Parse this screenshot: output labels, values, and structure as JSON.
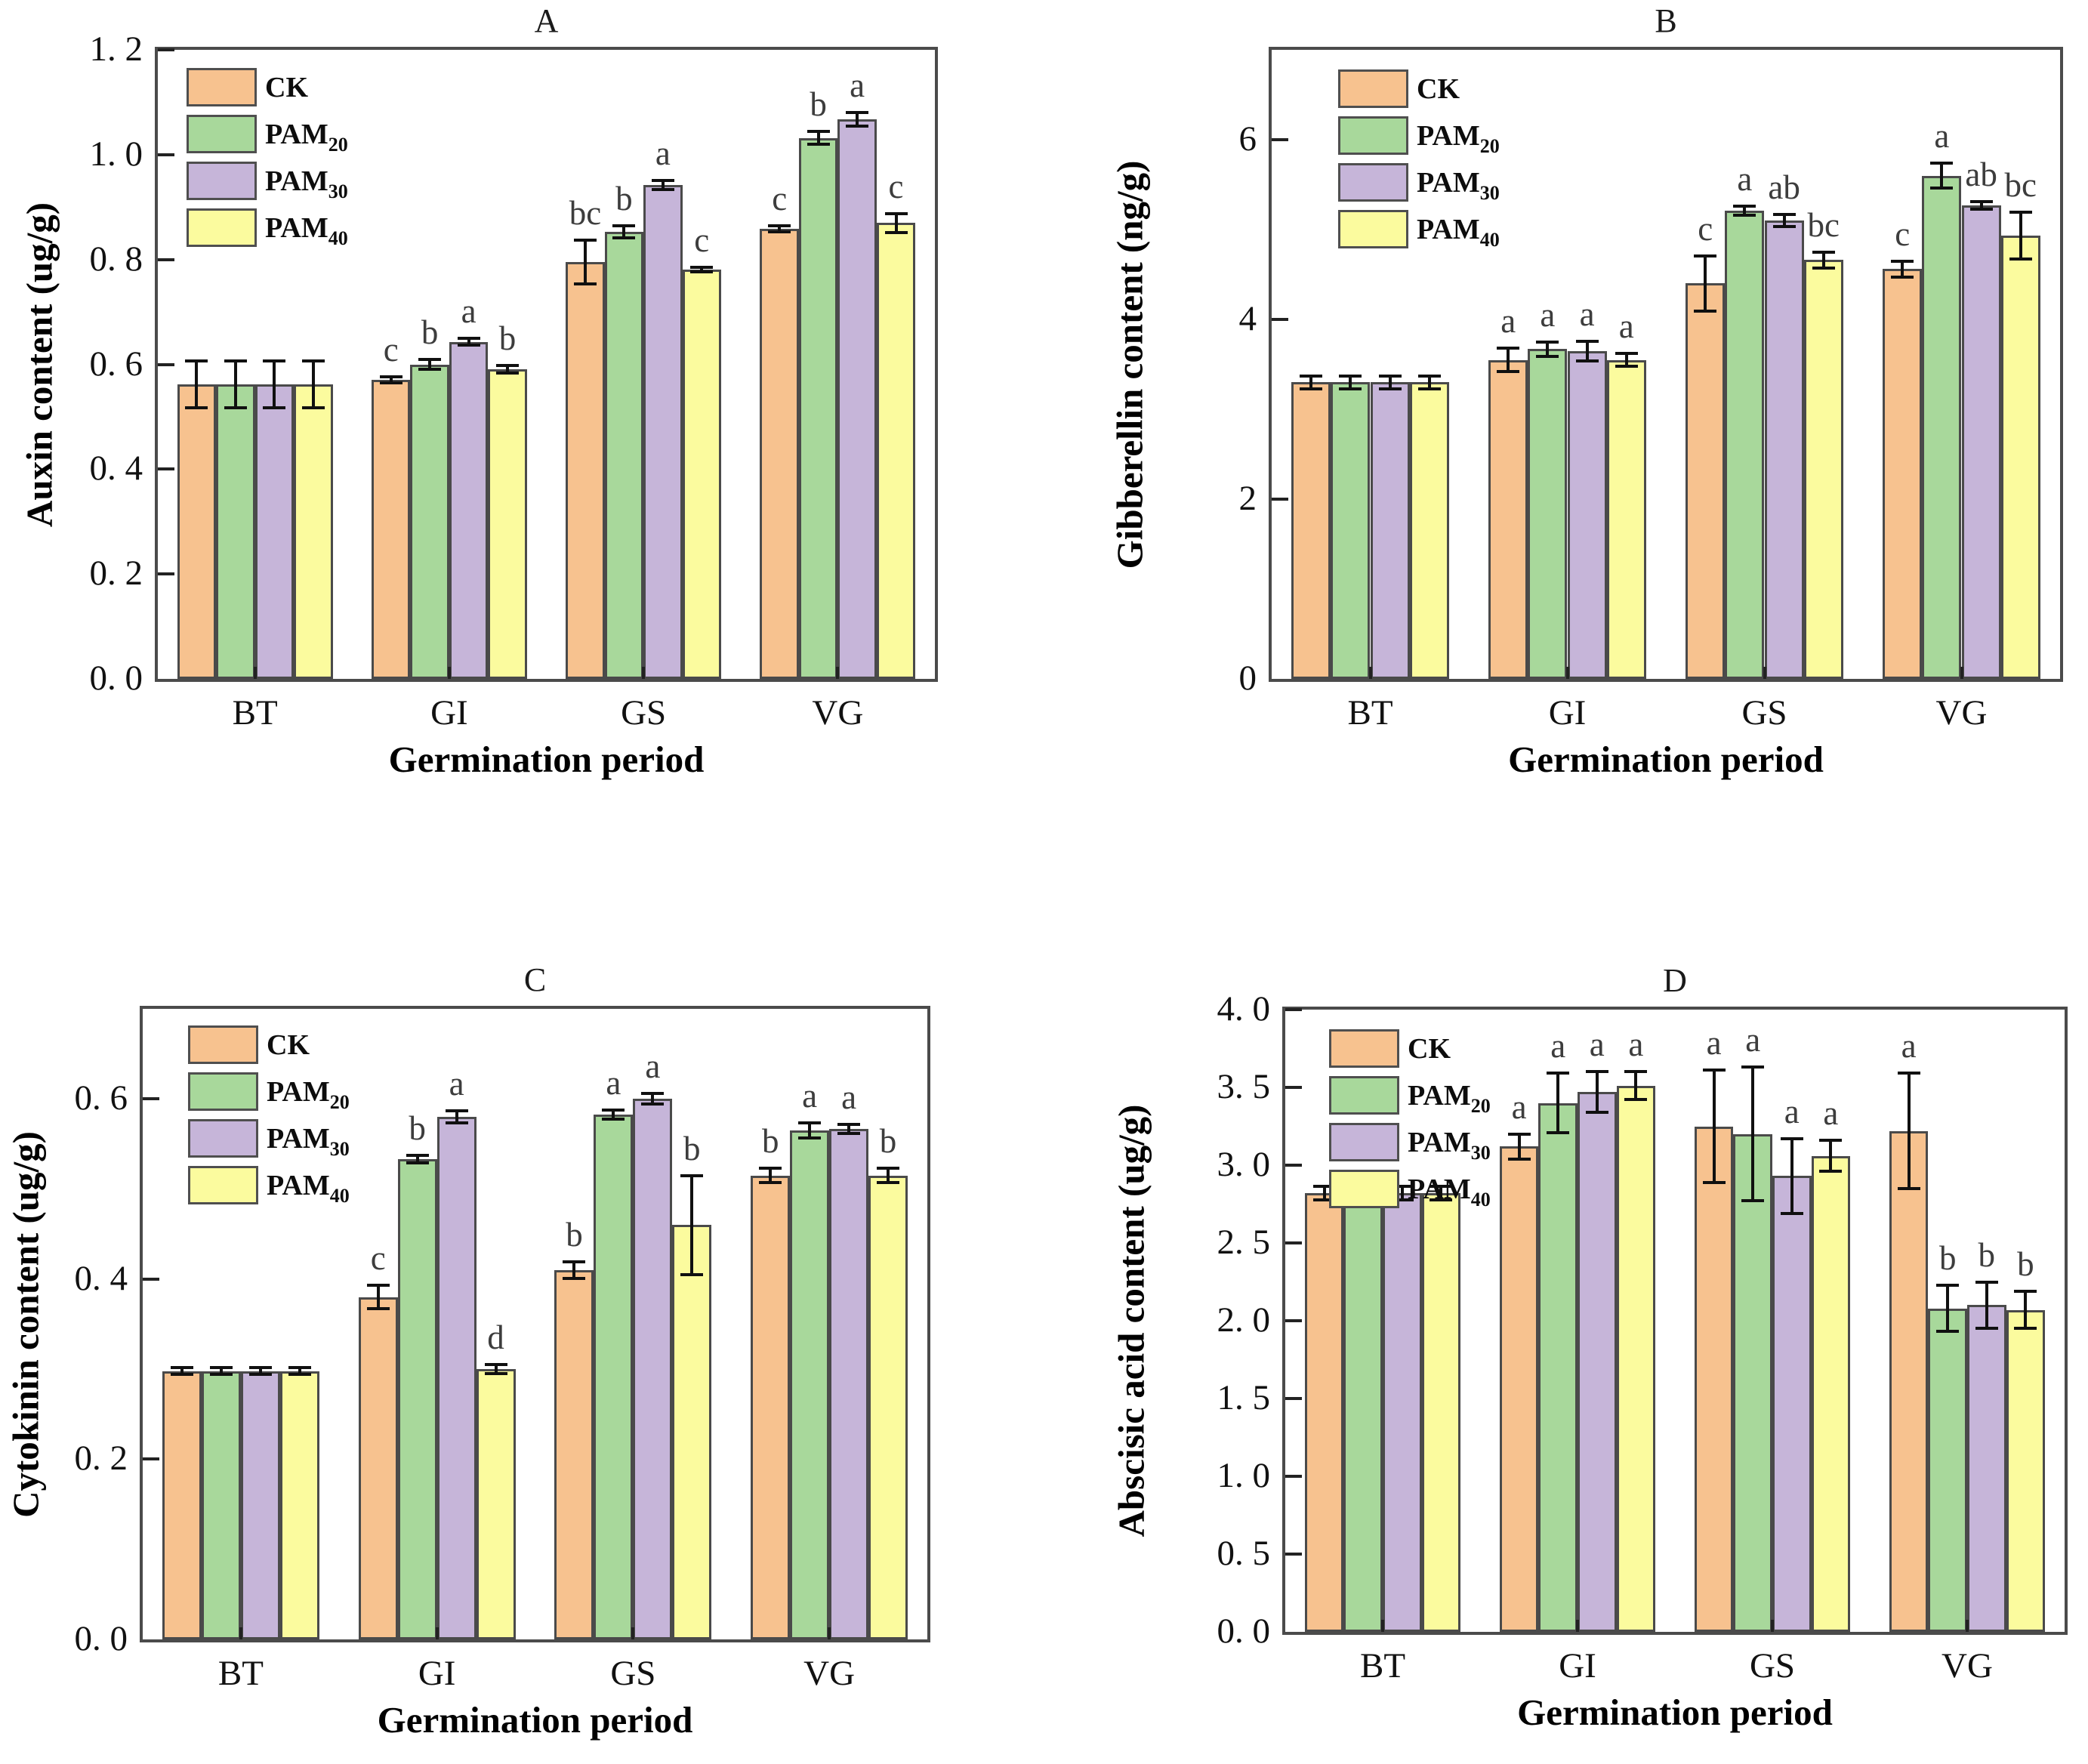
{
  "figure": {
    "background": "#ffffff",
    "series_labels": [
      {
        "label": "CK",
        "sub": ""
      },
      {
        "label": "PAM",
        "sub": "20"
      },
      {
        "label": "PAM",
        "sub": "30"
      },
      {
        "label": "PAM",
        "sub": "40"
      }
    ],
    "series_colors": [
      "#F7C28F",
      "#A8D89B",
      "#C6B5D9",
      "#FBFB9E"
    ],
    "bar_border_color": "#4a4a4a",
    "errorbar_color": "#101010",
    "sig_letter_color": "#3d3d3d",
    "legend_position": "top-left"
  },
  "chart_data": [
    {
      "type": "bar",
      "title": "A",
      "ylabel": "Auxin content (ug/g)",
      "xlabel": "Germination period",
      "categories": [
        "BT",
        "GI",
        "GS",
        "VG"
      ],
      "ylim": [
        0,
        1.2
      ],
      "grid": false,
      "yticks": [
        {
          "v": 0.0,
          "label": "0. 0"
        },
        {
          "v": 0.2,
          "label": "0. 2"
        },
        {
          "v": 0.4,
          "label": "0. 4"
        },
        {
          "v": 0.6,
          "label": "0. 6"
        },
        {
          "v": 0.8,
          "label": "0. 8"
        },
        {
          "v": 1.0,
          "label": "1. 0"
        },
        {
          "v": 1.2,
          "label": "1. 2"
        }
      ],
      "series": [
        {
          "name": "CK",
          "values": [
            0.562,
            0.57,
            0.795,
            0.859
          ],
          "errors": [
            0.045,
            0.006,
            0.042,
            0.006
          ],
          "letters": [
            "",
            "c",
            "bc",
            "c"
          ]
        },
        {
          "name": "PAM20",
          "values": [
            0.562,
            0.6,
            0.853,
            1.032
          ],
          "errors": [
            0.045,
            0.01,
            0.012,
            0.012
          ],
          "letters": [
            "",
            "b",
            "b",
            "b"
          ]
        },
        {
          "name": "PAM30",
          "values": [
            0.562,
            0.643,
            0.942,
            1.068
          ],
          "errors": [
            0.045,
            0.006,
            0.009,
            0.013
          ],
          "letters": [
            "",
            "a",
            "a",
            "a"
          ]
        },
        {
          "name": "PAM40",
          "values": [
            0.562,
            0.591,
            0.781,
            0.87
          ],
          "errors": [
            0.045,
            0.007,
            0.004,
            0.018
          ],
          "letters": [
            "",
            "b",
            "c",
            "c"
          ]
        }
      ]
    },
    {
      "type": "bar",
      "title": "B",
      "ylabel": "Gibberellin content (ng/g)",
      "xlabel": "Germination period",
      "categories": [
        "BT",
        "GI",
        "GS",
        "VG"
      ],
      "ylim": [
        0,
        7
      ],
      "grid": false,
      "yticks": [
        {
          "v": 0,
          "label": "0"
        },
        {
          "v": 2,
          "label": "2"
        },
        {
          "v": 4,
          "label": "4"
        },
        {
          "v": 6,
          "label": "6"
        }
      ],
      "series": [
        {
          "name": "CK",
          "values": [
            3.3,
            3.55,
            4.4,
            4.56
          ],
          "errors": [
            0.07,
            0.13,
            0.31,
            0.09
          ],
          "letters": [
            "",
            "a",
            "c",
            "c"
          ]
        },
        {
          "name": "PAM20",
          "values": [
            3.3,
            3.67,
            5.21,
            5.6
          ],
          "errors": [
            0.07,
            0.08,
            0.05,
            0.14
          ],
          "letters": [
            "",
            "a",
            "a",
            "a"
          ]
        },
        {
          "name": "PAM30",
          "values": [
            3.3,
            3.65,
            5.1,
            5.27
          ],
          "errors": [
            0.07,
            0.11,
            0.07,
            0.04
          ],
          "letters": [
            "",
            "a",
            "ab",
            "ab"
          ]
        },
        {
          "name": "PAM40",
          "values": [
            3.3,
            3.55,
            4.66,
            4.93
          ],
          "errors": [
            0.07,
            0.07,
            0.09,
            0.26
          ],
          "letters": [
            "",
            "a",
            "bc",
            "bc"
          ]
        }
      ]
    },
    {
      "type": "bar",
      "title": "C",
      "ylabel": "Cytokinin content (ug/g)",
      "xlabel": "Germination period",
      "categories": [
        "BT",
        "GI",
        "GS",
        "VG"
      ],
      "ylim": [
        0,
        0.7
      ],
      "grid": false,
      "yticks": [
        {
          "v": 0.0,
          "label": "0. 0"
        },
        {
          "v": 0.2,
          "label": "0. 2"
        },
        {
          "v": 0.4,
          "label": "0. 4"
        },
        {
          "v": 0.6,
          "label": "0. 6"
        }
      ],
      "series": [
        {
          "name": "CK",
          "values": [
            0.298,
            0.38,
            0.41,
            0.515
          ],
          "errors": [
            0.004,
            0.013,
            0.009,
            0.008
          ],
          "letters": [
            "",
            "c",
            "b",
            "b"
          ]
        },
        {
          "name": "PAM20",
          "values": [
            0.298,
            0.533,
            0.583,
            0.565
          ],
          "errors": [
            0.004,
            0.004,
            0.005,
            0.008
          ],
          "letters": [
            "",
            "b",
            "a",
            "a"
          ]
        },
        {
          "name": "PAM30",
          "values": [
            0.298,
            0.58,
            0.6,
            0.567
          ],
          "errors": [
            0.004,
            0.007,
            0.006,
            0.005
          ],
          "letters": [
            "",
            "a",
            "a",
            "a"
          ]
        },
        {
          "name": "PAM40",
          "values": [
            0.298,
            0.3,
            0.46,
            0.515
          ],
          "errors": [
            0.004,
            0.005,
            0.055,
            0.008
          ],
          "letters": [
            "",
            "d",
            "b",
            "b"
          ]
        }
      ]
    },
    {
      "type": "bar",
      "title": "D",
      "ylabel": "Abscisic acid content (ug/g)",
      "xlabel": "Germination period",
      "categories": [
        "BT",
        "GI",
        "GS",
        "VG"
      ],
      "ylim": [
        0,
        4
      ],
      "grid": false,
      "yticks": [
        {
          "v": 0.0,
          "label": "0. 0"
        },
        {
          "v": 0.5,
          "label": "0. 5"
        },
        {
          "v": 1.0,
          "label": "1. 0"
        },
        {
          "v": 1.5,
          "label": "1. 5"
        },
        {
          "v": 2.0,
          "label": "2. 0"
        },
        {
          "v": 2.5,
          "label": "2. 5"
        },
        {
          "v": 3.0,
          "label": "3. 0"
        },
        {
          "v": 3.5,
          "label": "3. 5"
        },
        {
          "v": 4.0,
          "label": "4. 0"
        }
      ],
      "series": [
        {
          "name": "CK",
          "values": [
            2.82,
            3.12,
            3.25,
            3.22
          ],
          "errors": [
            0.045,
            0.08,
            0.36,
            0.37
          ],
          "letters": [
            "",
            "a",
            "a",
            "a"
          ]
        },
        {
          "name": "PAM20",
          "values": [
            2.82,
            3.4,
            3.2,
            2.08
          ],
          "errors": [
            0.045,
            0.19,
            0.43,
            0.15
          ],
          "letters": [
            "",
            "a",
            "a",
            "b"
          ]
        },
        {
          "name": "PAM30",
          "values": [
            2.82,
            3.47,
            2.93,
            2.1
          ],
          "errors": [
            0.045,
            0.13,
            0.24,
            0.15
          ],
          "letters": [
            "",
            "a",
            "a",
            "b"
          ]
        },
        {
          "name": "PAM40",
          "values": [
            2.82,
            3.51,
            3.06,
            2.07
          ],
          "errors": [
            0.045,
            0.09,
            0.1,
            0.12
          ],
          "letters": [
            "",
            "a",
            "a",
            "b"
          ]
        }
      ]
    }
  ]
}
